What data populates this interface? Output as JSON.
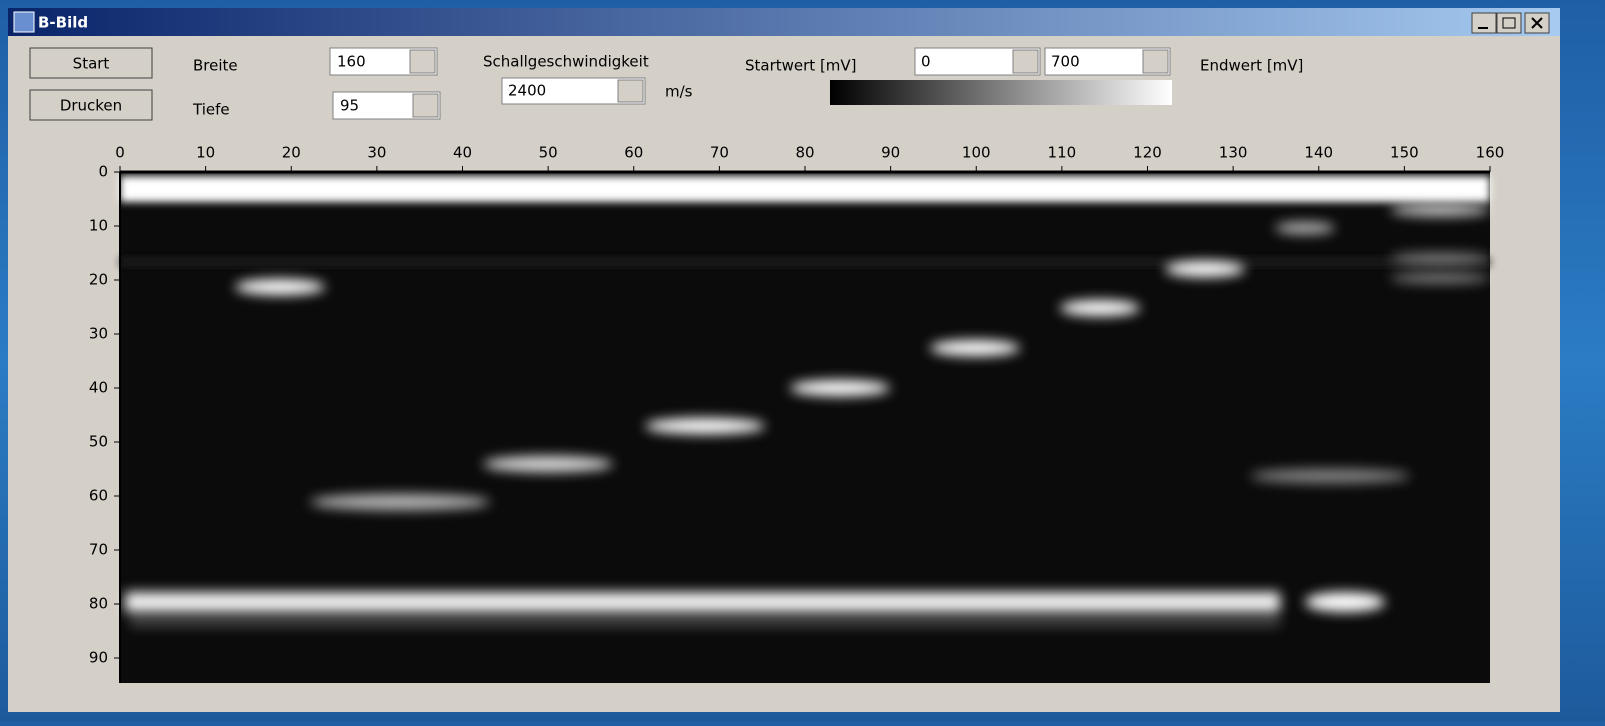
{
  "window": {
    "title": "B-Bild"
  },
  "buttons": [
    "Start",
    "Drucken"
  ],
  "labels": {
    "breite": "Breite",
    "tiefe": "Tiefe",
    "speed": "Schallgeschwindigkeit",
    "speed_unit": "m/s",
    "start": "Startwert [mV]",
    "end": "Endwert [mV]"
  },
  "inputs": {
    "breite": "160",
    "tiefe": "95",
    "speed": "2400",
    "start": "0",
    "end": "700"
  },
  "image": {
    "xticks": [
      0,
      10,
      20,
      30,
      40,
      50,
      60,
      70,
      80,
      90,
      100,
      110,
      120,
      130,
      140,
      150,
      160
    ],
    "yticks": [
      0,
      10,
      20,
      30,
      40,
      50,
      60,
      70,
      80,
      90
    ]
  }
}
